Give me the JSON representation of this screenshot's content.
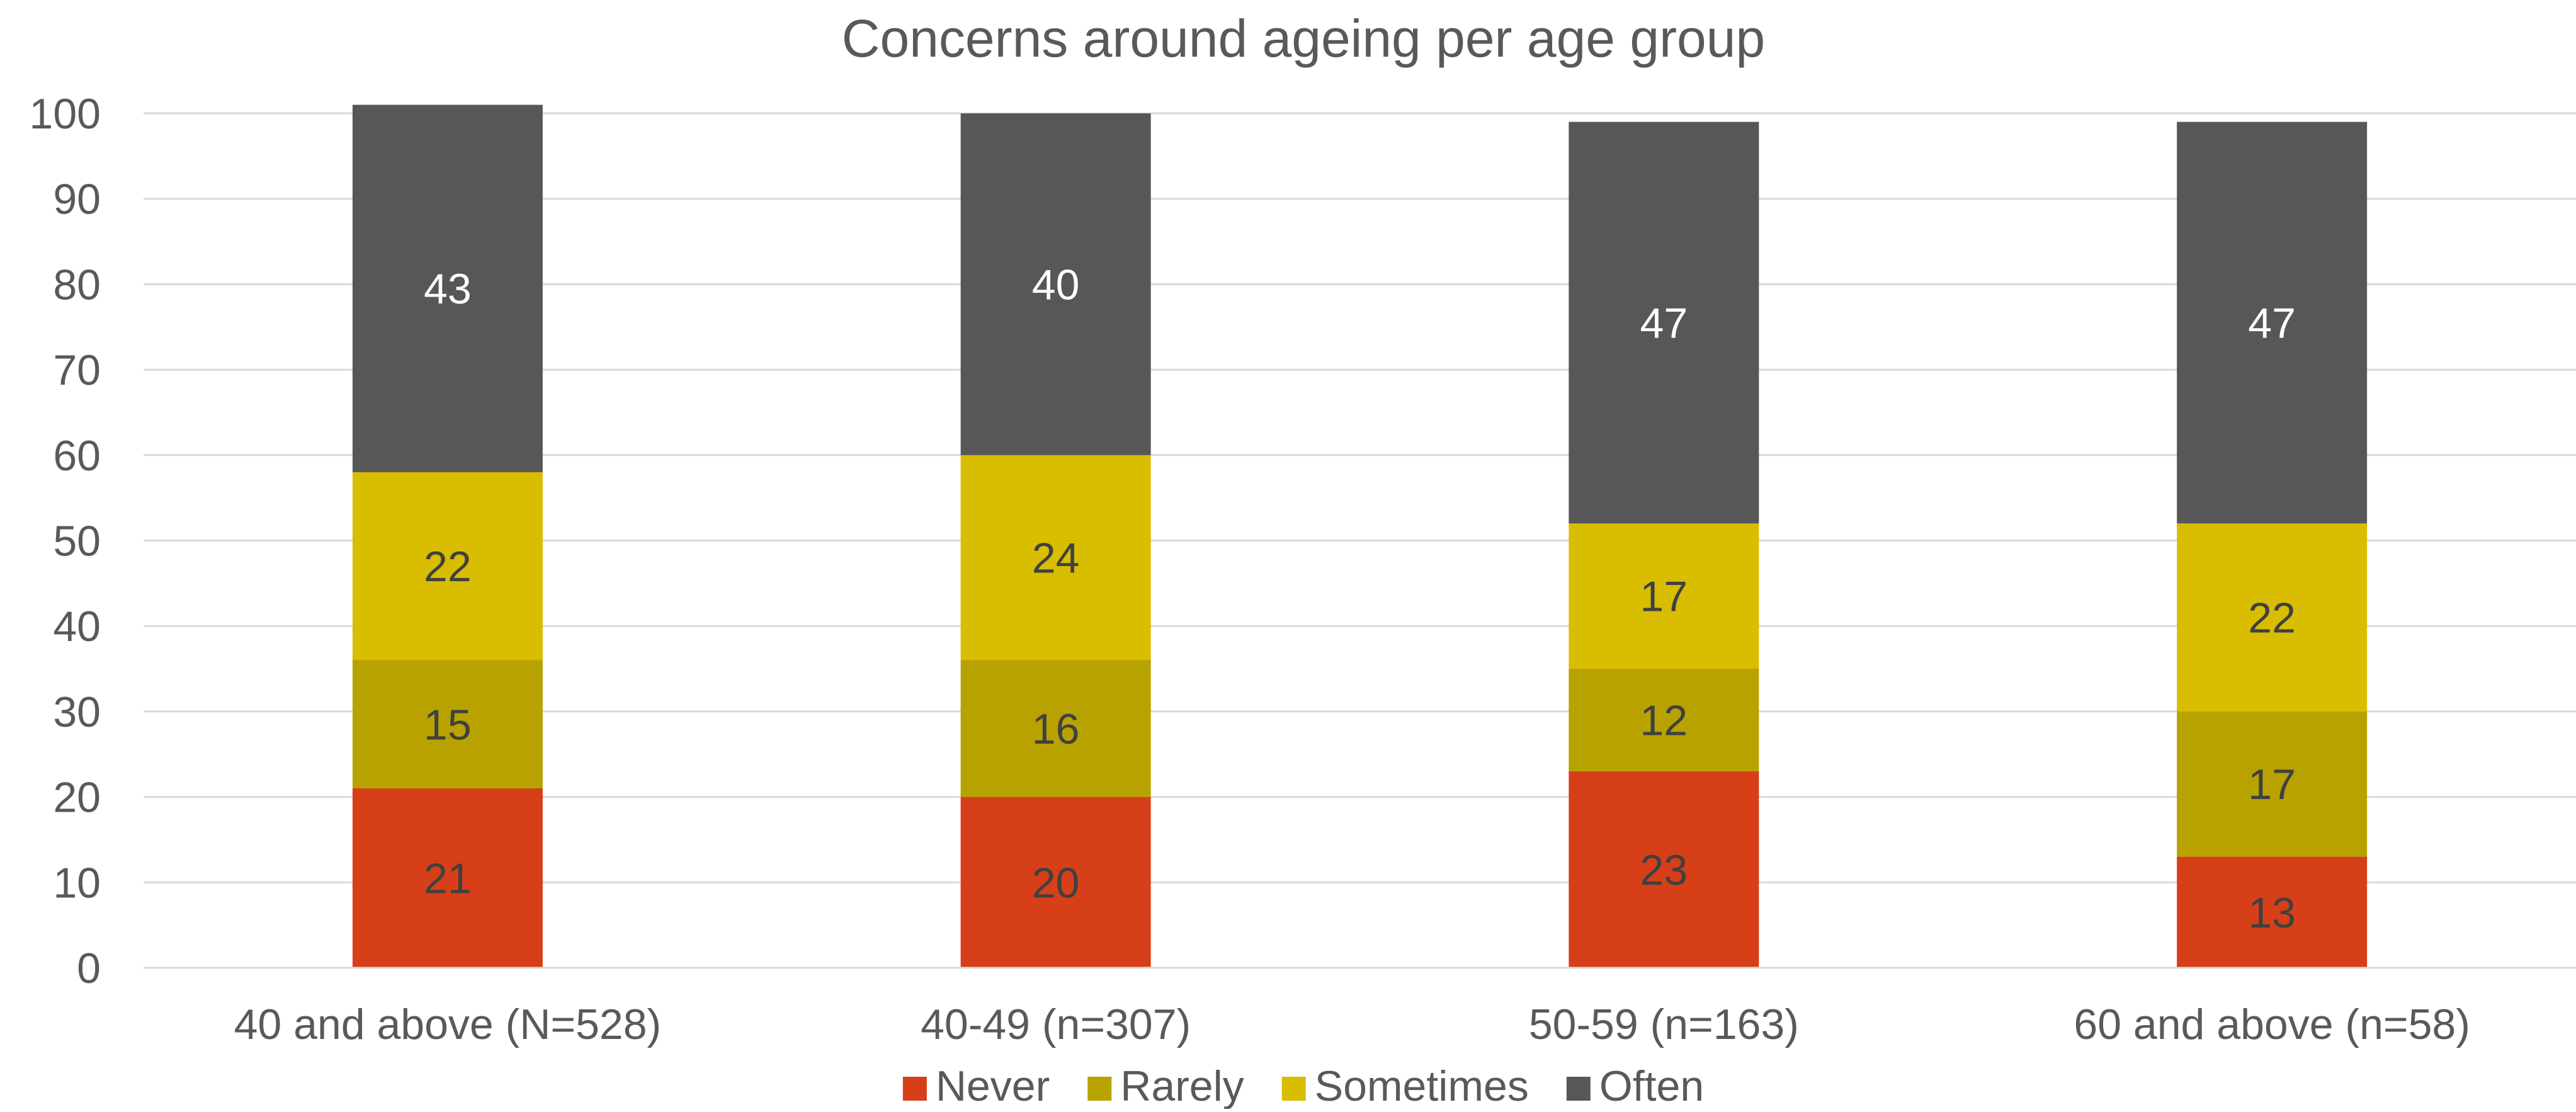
{
  "chart_data": {
    "type": "bar",
    "stacked": true,
    "title": "Concerns around ageing per age group",
    "xlabel": "",
    "ylabel": "",
    "ylim": [
      0,
      100
    ],
    "yticks": [
      "0",
      "10",
      "20",
      "30",
      "40",
      "50",
      "60",
      "70",
      "80",
      "90",
      "100"
    ],
    "grid": true,
    "legend_position": "bottom",
    "categories": [
      "40 and above (N=528)",
      "40-49 (n=307)",
      "50-59 (n=163)",
      "60 and above (n=58)"
    ],
    "series": [
      {
        "name": "Never",
        "color": "#D63F18",
        "label_color": "#404040",
        "values": [
          21,
          20,
          23,
          13
        ]
      },
      {
        "name": "Rarely",
        "color": "#B7A200",
        "label_color": "#404040",
        "values": [
          15,
          16,
          12,
          17
        ]
      },
      {
        "name": "Sometimes",
        "color": "#D8BD00",
        "label_color": "#404040",
        "values": [
          22,
          24,
          17,
          22
        ]
      },
      {
        "name": "Often",
        "color": "#575757",
        "label_color": "#FFFFFF",
        "values": [
          43,
          40,
          47,
          47
        ]
      }
    ]
  }
}
